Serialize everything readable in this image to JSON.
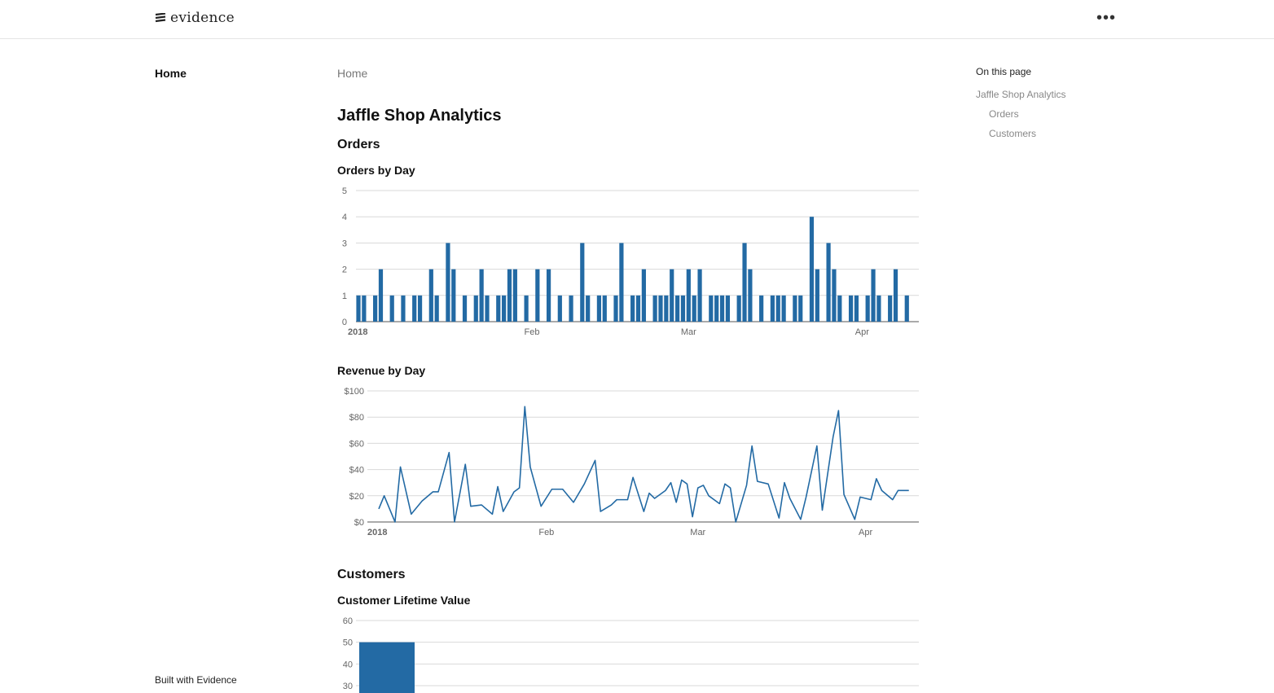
{
  "header": {
    "logo_text": "evidence",
    "menu_icon": "more-horizontal-icon"
  },
  "sidebar": {
    "items": [
      {
        "label": "Home"
      }
    ],
    "footer": "Built with Evidence"
  },
  "breadcrumb": "Home",
  "page": {
    "title": "Jaffle Shop Analytics",
    "sections": [
      {
        "heading": "Orders"
      },
      {
        "heading": "Customers"
      }
    ]
  },
  "toc": {
    "title": "On this page",
    "items": [
      "Jaffle Shop Analytics",
      "Orders",
      "Customers"
    ]
  },
  "colors": {
    "series": "#236aa4",
    "grid": "#d9d9d9",
    "axis": "#666666"
  },
  "chart_data": [
    {
      "type": "bar",
      "title": "Orders by Day",
      "ylim": [
        0,
        5
      ],
      "yticks": [
        "0",
        "1",
        "2",
        "3",
        "4",
        "5"
      ],
      "xticks": [
        {
          "label": "2018",
          "date": "2018-01-01",
          "bold": true
        },
        {
          "label": "Feb",
          "date": "2018-02-01"
        },
        {
          "label": "Mar",
          "date": "2018-03-01"
        },
        {
          "label": "Apr",
          "date": "2018-04-01"
        }
      ],
      "grid": true,
      "x": [
        "2018-01-01",
        "2018-01-02",
        "2018-01-04",
        "2018-01-05",
        "2018-01-07",
        "2018-01-09",
        "2018-01-11",
        "2018-01-12",
        "2018-01-14",
        "2018-01-15",
        "2018-01-17",
        "2018-01-18",
        "2018-01-20",
        "2018-01-22",
        "2018-01-23",
        "2018-01-24",
        "2018-01-26",
        "2018-01-27",
        "2018-01-28",
        "2018-01-29",
        "2018-01-31",
        "2018-02-02",
        "2018-02-04",
        "2018-02-06",
        "2018-02-08",
        "2018-02-10",
        "2018-02-11",
        "2018-02-13",
        "2018-02-14",
        "2018-02-16",
        "2018-02-17",
        "2018-02-19",
        "2018-02-20",
        "2018-02-21",
        "2018-02-23",
        "2018-02-24",
        "2018-02-25",
        "2018-02-26",
        "2018-02-27",
        "2018-02-28",
        "2018-03-01",
        "2018-03-02",
        "2018-03-03",
        "2018-03-05",
        "2018-03-06",
        "2018-03-07",
        "2018-03-08",
        "2018-03-10",
        "2018-03-11",
        "2018-03-12",
        "2018-03-14",
        "2018-03-16",
        "2018-03-17",
        "2018-03-18",
        "2018-03-20",
        "2018-03-21",
        "2018-03-23",
        "2018-03-24",
        "2018-03-26",
        "2018-03-27",
        "2018-03-28",
        "2018-03-30",
        "2018-03-31",
        "2018-04-02",
        "2018-04-03",
        "2018-04-04",
        "2018-04-06",
        "2018-04-07",
        "2018-04-09"
      ],
      "values": [
        1,
        1,
        1,
        2,
        1,
        1,
        1,
        1,
        2,
        1,
        3,
        2,
        1,
        1,
        2,
        1,
        1,
        1,
        2,
        2,
        1,
        2,
        2,
        1,
        1,
        3,
        1,
        1,
        1,
        1,
        3,
        1,
        1,
        2,
        1,
        1,
        1,
        2,
        1,
        1,
        2,
        1,
        2,
        1,
        1,
        1,
        1,
        1,
        3,
        2,
        1,
        1,
        1,
        1,
        1,
        1,
        4,
        2,
        3,
        2,
        1,
        1,
        1,
        1,
        2,
        1,
        1,
        2,
        1
      ]
    },
    {
      "type": "line",
      "title": "Revenue by Day",
      "ylim": [
        0,
        100
      ],
      "yticks": [
        "$0",
        "$20",
        "$40",
        "$60",
        "$80",
        "$100"
      ],
      "xticks": [
        {
          "label": "2018",
          "date": "2018-01-01",
          "bold": true
        },
        {
          "label": "Feb",
          "date": "2018-02-01"
        },
        {
          "label": "Mar",
          "date": "2018-03-01"
        },
        {
          "label": "Apr",
          "date": "2018-04-01"
        }
      ],
      "grid": true,
      "x": [
        "2018-01-01",
        "2018-01-02",
        "2018-01-04",
        "2018-01-05",
        "2018-01-07",
        "2018-01-09",
        "2018-01-11",
        "2018-01-12",
        "2018-01-14",
        "2018-01-15",
        "2018-01-17",
        "2018-01-18",
        "2018-01-20",
        "2018-01-22",
        "2018-01-23",
        "2018-01-24",
        "2018-01-26",
        "2018-01-27",
        "2018-01-28",
        "2018-01-29",
        "2018-01-31",
        "2018-02-02",
        "2018-02-04",
        "2018-02-06",
        "2018-02-08",
        "2018-02-10",
        "2018-02-11",
        "2018-02-13",
        "2018-02-14",
        "2018-02-16",
        "2018-02-17",
        "2018-02-19",
        "2018-02-20",
        "2018-02-21",
        "2018-02-23",
        "2018-02-24",
        "2018-02-25",
        "2018-02-26",
        "2018-02-27",
        "2018-02-28",
        "2018-03-01",
        "2018-03-02",
        "2018-03-03",
        "2018-03-05",
        "2018-03-06",
        "2018-03-07",
        "2018-03-08",
        "2018-03-10",
        "2018-03-11",
        "2018-03-12",
        "2018-03-14",
        "2018-03-16",
        "2018-03-17",
        "2018-03-18",
        "2018-03-20",
        "2018-03-21",
        "2018-03-23",
        "2018-03-24",
        "2018-03-26",
        "2018-03-27",
        "2018-03-28",
        "2018-03-30",
        "2018-03-31",
        "2018-04-02",
        "2018-04-03",
        "2018-04-04",
        "2018-04-06",
        "2018-04-07",
        "2018-04-09"
      ],
      "values": [
        10,
        20,
        0,
        42,
        6,
        16,
        23,
        23,
        53,
        0,
        44,
        12,
        13,
        6,
        27,
        8,
        23,
        26,
        88,
        42,
        12,
        25,
        25,
        15,
        29,
        47,
        8,
        13,
        17,
        17,
        34,
        8,
        22,
        18,
        24,
        30,
        15,
        32,
        29,
        4,
        26,
        28,
        20,
        14,
        29,
        26,
        0,
        28,
        58,
        31,
        29,
        3,
        30,
        18,
        2,
        19,
        58,
        9,
        65,
        85,
        21,
        2,
        19,
        17,
        33,
        24,
        17,
        24,
        24
      ]
    },
    {
      "type": "bar",
      "title": "Customer Lifetime Value",
      "yticks": [
        "30",
        "40",
        "50",
        "60"
      ],
      "ylim": [
        0,
        60
      ],
      "grid": true,
      "values": [
        50
      ]
    }
  ]
}
